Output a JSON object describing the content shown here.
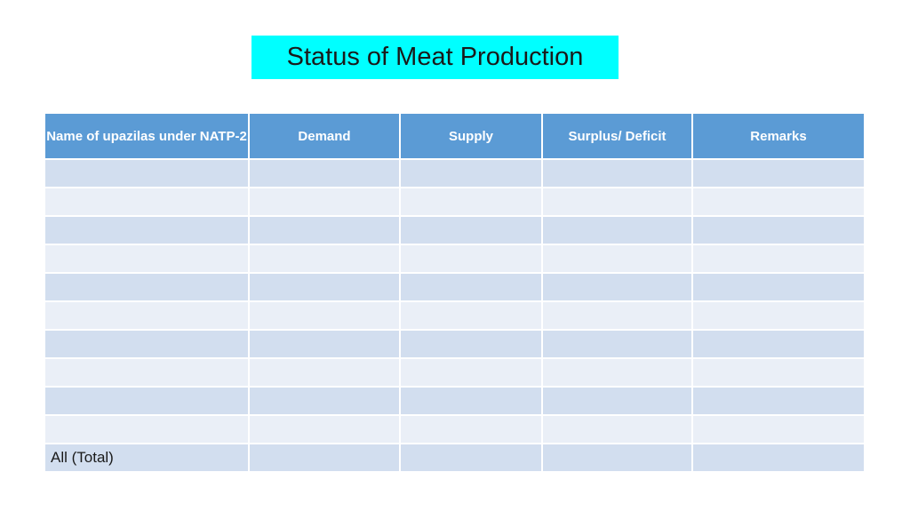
{
  "slide": {
    "title": "Status of Meat Production",
    "title_bg_color": "#00ffff"
  },
  "table": {
    "header_bg_color": "#5b9bd5",
    "columns": [
      "Name of upazilas under NATP-2",
      "Demand",
      "Supply",
      "Surplus/ Deficit",
      "Remarks"
    ],
    "rows": [
      [
        "",
        "",
        "",
        "",
        ""
      ],
      [
        "",
        "",
        "",
        "",
        ""
      ],
      [
        "",
        "",
        "",
        "",
        ""
      ],
      [
        "",
        "",
        "",
        "",
        ""
      ],
      [
        "",
        "",
        "",
        "",
        ""
      ],
      [
        "",
        "",
        "",
        "",
        ""
      ],
      [
        "",
        "",
        "",
        "",
        ""
      ],
      [
        "",
        "",
        "",
        "",
        ""
      ],
      [
        "",
        "",
        "",
        "",
        ""
      ],
      [
        "",
        "",
        "",
        "",
        ""
      ],
      [
        "All (Total)",
        "",
        "",
        "",
        ""
      ]
    ]
  }
}
